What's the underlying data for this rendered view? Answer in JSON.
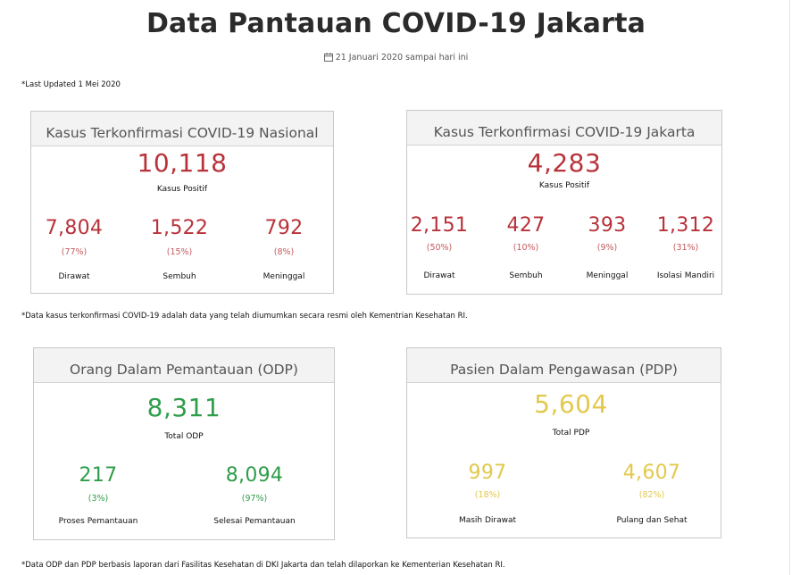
{
  "page": {
    "title": "Data Pantauan COVID-19 Jakarta",
    "date_range": "21 Januari 2020 sampai hari ini",
    "last_updated": "*Last Updated 1 Mei 2020",
    "note_confirmed": "*Data kasus terkonfirmasi COVID-19 adalah data yang telah diumumkan secara resmi oleh Kementrian Kesehatan RI.",
    "note_odp_pdp": "*Data ODP dan PDP berbasis laporan dari Fasilitas Kesehatan di DKI Jakarta dan telah dilaporkan ke Kementerian Kesehatan RI."
  },
  "colors": {
    "red": "#b8323a",
    "green": "#2f9d4a",
    "yellow": "#e3c84b"
  },
  "nasional": {
    "header": "Kasus Terkonfirmasi COVID-19 Nasional",
    "total": "10,118",
    "total_label": "Kasus Positif",
    "stats": [
      {
        "value": "7,804",
        "pct": "(77%)",
        "label": "Dirawat"
      },
      {
        "value": "1,522",
        "pct": "(15%)",
        "label": "Sembuh"
      },
      {
        "value": "792",
        "pct": "(8%)",
        "label": "Meninggal"
      }
    ]
  },
  "jakarta": {
    "header": "Kasus Terkonfirmasi COVID-19 Jakarta",
    "total": "4,283",
    "total_label": "Kasus Positif",
    "stats": [
      {
        "value": "2,151",
        "pct": "(50%)",
        "label": "Dirawat"
      },
      {
        "value": "427",
        "pct": "(10%)",
        "label": "Sembuh"
      },
      {
        "value": "393",
        "pct": "(9%)",
        "label": "Meninggal"
      },
      {
        "value": "1,312",
        "pct": "(31%)",
        "label": "Isolasi Mandiri"
      }
    ]
  },
  "odp": {
    "header": "Orang Dalam Pemantauan (ODP)",
    "total": "8,311",
    "total_label": "Total ODP",
    "stats": [
      {
        "value": "217",
        "pct": "(3%)",
        "label": "Proses Pemantauan"
      },
      {
        "value": "8,094",
        "pct": "(97%)",
        "label": "Selesai Pemantauan"
      }
    ]
  },
  "pdp": {
    "header": "Pasien Dalam Pengawasan (PDP)",
    "total": "5,604",
    "total_label": "Total PDP",
    "stats": [
      {
        "value": "997",
        "pct": "(18%)",
        "label": "Masih Dirawat"
      },
      {
        "value": "4,607",
        "pct": "(82%)",
        "label": "Pulang dan Sehat"
      }
    ]
  }
}
